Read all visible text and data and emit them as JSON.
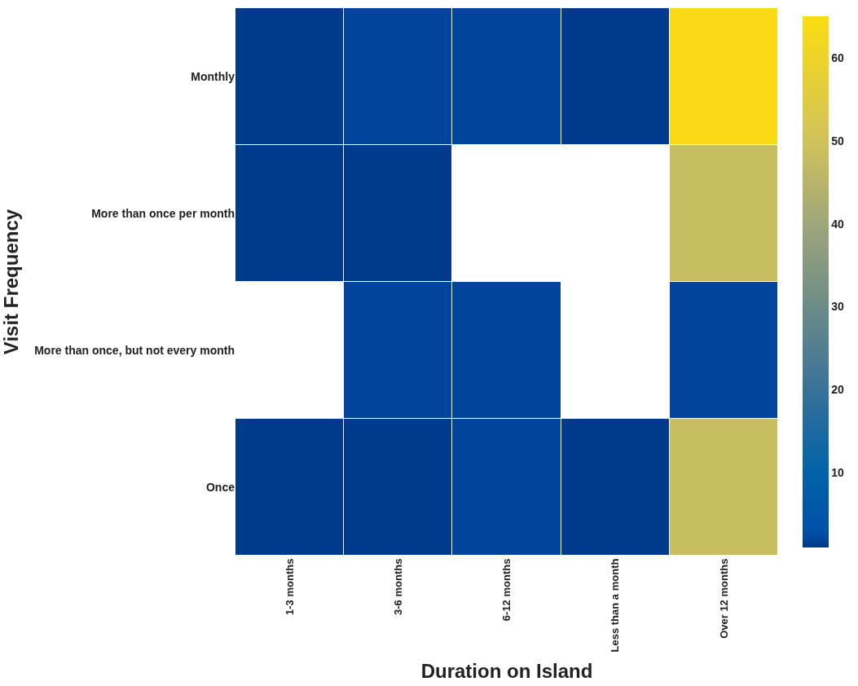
{
  "chart_data": {
    "type": "heatmap",
    "xlabel": "Duration on Island",
    "ylabel": "Visit Frequency",
    "categories": [
      "1-3 months",
      "3-6 months",
      "6-12 months",
      "Less than a month",
      "Over 12 months"
    ],
    "y_categories": [
      "Monthly",
      "More than once per month",
      "More than once, but not every month",
      "Once"
    ],
    "cells": [
      [
        1,
        2,
        2,
        1,
        64
      ],
      [
        1,
        1,
        null,
        null,
        48
      ],
      [
        null,
        2,
        2,
        null,
        2
      ],
      [
        1,
        1,
        2,
        1,
        48
      ]
    ],
    "clim": [
      1,
      65
    ],
    "cticks": [
      10,
      20,
      30,
      40,
      50,
      60
    ]
  }
}
